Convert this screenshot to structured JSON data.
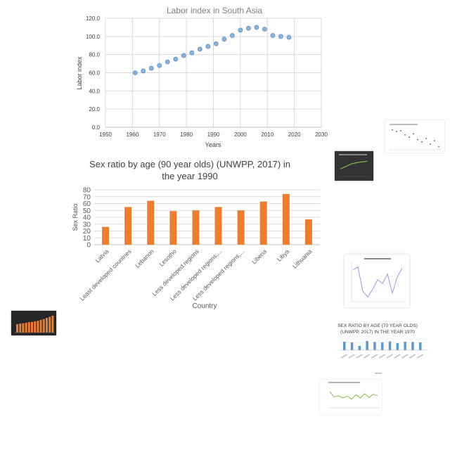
{
  "chart_data": [
    {
      "type": "scatter",
      "title": "Labor index in South Asia",
      "xlabel": "Years",
      "ylabel": "Labor index",
      "xlim": [
        1950,
        2030
      ],
      "ylim": [
        0,
        120
      ],
      "x_ticks": [
        "1950",
        "1960",
        "1970",
        "1980",
        "1990",
        "2000",
        "2010",
        "2020",
        "2030"
      ],
      "y_ticks": [
        "0.0",
        "20.0",
        "40.0",
        "60.0",
        "80.0",
        "100.0",
        "120.0"
      ],
      "grid": true,
      "series": [
        {
          "x": [
            1961,
            1964,
            1967,
            1970,
            1973,
            1976,
            1979,
            1982,
            1985,
            1988,
            1991,
            1994,
            1997,
            2000,
            2003,
            2006,
            2009,
            2012,
            2015,
            2018
          ],
          "y": [
            60,
            62,
            65,
            68,
            72,
            75,
            79,
            82,
            86,
            89,
            92,
            97,
            101,
            107,
            109,
            110,
            108,
            101,
            100,
            99
          ]
        }
      ],
      "colors": {
        "marker_fill": "#8ab4e0",
        "marker_stroke": "#5a8fc8",
        "grid": "#d9d9d9"
      }
    },
    {
      "type": "bar",
      "title_lines": [
        "Sex ratio by age (90 year olds) (UNWPP, 2017) in",
        "the year 1990"
      ],
      "xlabel": "Country",
      "ylabel": "Sex Ratio",
      "ylim": [
        0,
        80
      ],
      "y_ticks": [
        "0",
        "10",
        "20",
        "30",
        "40",
        "50",
        "60",
        "70",
        "80"
      ],
      "categories": [
        "Latvia",
        "Least developed countries",
        "Lebanon",
        "Lesotho",
        "Less developed regions",
        "Less developed regions,...",
        "Less developed regions,...",
        "Liberia",
        "Libya",
        "Lithuania"
      ],
      "values": [
        26,
        55,
        64,
        49,
        50,
        55,
        50,
        63,
        74,
        37
      ],
      "grid": true,
      "colors": {
        "bar": "#ed7d31",
        "grid": "#d9d9d9"
      }
    }
  ],
  "thumbnails": {
    "scatter_small": {
      "values": [
        92,
        85,
        88,
        70,
        60,
        75,
        50,
        40,
        55,
        30,
        45,
        20
      ]
    },
    "dark_line": {
      "values": [
        30,
        38,
        45,
        52,
        55,
        58,
        60,
        62
      ]
    },
    "purple_line": {
      "values": [
        80,
        88,
        25,
        10,
        30,
        55,
        45,
        70,
        20,
        62,
        85
      ]
    },
    "dark_bars": {
      "values": [
        30,
        32,
        33,
        35,
        37,
        38,
        40,
        42,
        45,
        48,
        52,
        56,
        60
      ]
    },
    "blue_bars": {
      "title_lines": [
        "SEX RATIO BY AGE (70 YEAR OLDS)",
        "(UNWPP, 2017) IN THE YEAR 1970"
      ],
      "values": [
        60,
        55,
        30,
        65,
        58,
        55,
        62,
        50,
        60,
        58,
        55
      ]
    },
    "green_line": {
      "values": [
        70,
        45,
        50,
        40,
        48,
        35,
        55,
        40,
        60,
        42,
        58,
        50
      ]
    }
  }
}
